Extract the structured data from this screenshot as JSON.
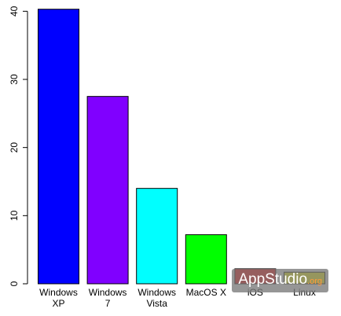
{
  "chart_data": {
    "type": "bar",
    "categories": [
      "Windows\nXP",
      "Windows\n7",
      "Windows\nVista",
      "MacOS X",
      "iOS",
      "Linux"
    ],
    "values": [
      40.3,
      27.5,
      14.0,
      7.2,
      2.2,
      1.7
    ],
    "colors": [
      "#0000ff",
      "#8000ff",
      "#00ffff",
      "#00ff00",
      "#ff0000",
      "#ffff00"
    ],
    "ylim": [
      0,
      40.5
    ],
    "yticks": [
      0,
      10,
      20,
      30,
      40
    ],
    "title": "",
    "xlabel": "",
    "ylabel": "",
    "grid": false,
    "legend": false
  },
  "watermark": {
    "main": "AppStudio",
    "suffix": ".org"
  }
}
